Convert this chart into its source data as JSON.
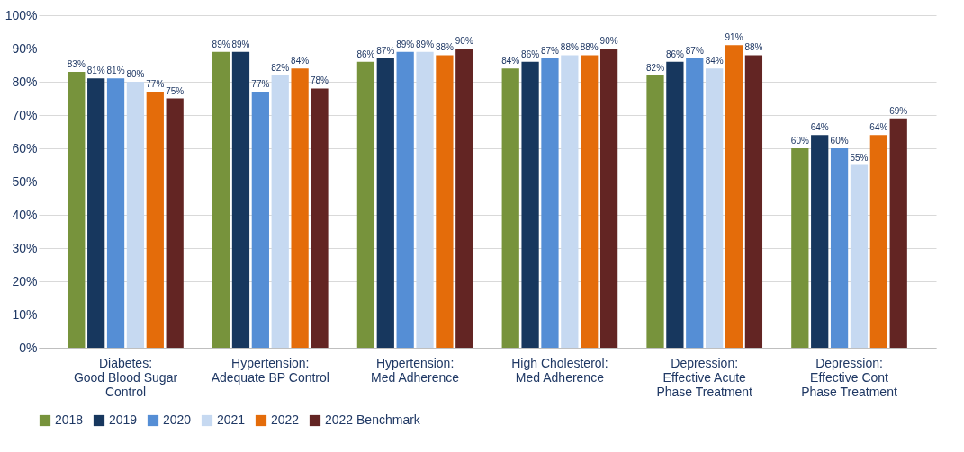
{
  "chart_data": {
    "type": "bar",
    "categories": [
      "Diabetes:\nGood Blood Sugar\nControl",
      "Hypertension:\nAdequate BP Control",
      "Hypertension:\nMed Adherence",
      "High Cholesterol:\nMed Adherence",
      "Depression:\nEffective Acute\nPhase Treatment",
      "Depression:\nEffective Cont\nPhase Treatment"
    ],
    "series": [
      {
        "name": "2018",
        "color": "#77933c",
        "values": [
          83,
          89,
          86,
          84,
          82,
          60
        ],
        "value_labels": [
          "83%",
          "89%",
          "86%",
          "84%",
          "82%",
          "60%"
        ]
      },
      {
        "name": "2019",
        "color": "#17375e",
        "values": [
          81,
          89,
          87,
          86,
          86,
          64
        ],
        "value_labels": [
          "81%",
          "89%",
          "87%",
          "86%",
          "86%",
          "64%"
        ]
      },
      {
        "name": "2020",
        "color": "#558ed5",
        "values": [
          81,
          77,
          89,
          87,
          87,
          60
        ],
        "value_labels": [
          "81%",
          "77%",
          "89%",
          "87%",
          "87%",
          "60%"
        ]
      },
      {
        "name": "2021",
        "color": "#c6d9f1",
        "values": [
          80,
          82,
          89,
          88,
          84,
          55
        ],
        "value_labels": [
          "80%",
          "82%",
          "89%",
          "88%",
          "84%",
          "55%"
        ]
      },
      {
        "name": "2022",
        "color": "#e46c0a",
        "values": [
          77,
          84,
          88,
          88,
          91,
          64
        ],
        "value_labels": [
          "77%",
          "84%",
          "88%",
          "88%",
          "91%",
          "64%"
        ]
      },
      {
        "name": "2022 Benchmark",
        "color": "#632523",
        "values": [
          75,
          78,
          90,
          90,
          88,
          69
        ],
        "value_labels": [
          "75%",
          "78%",
          "90%",
          "90%",
          "88%",
          "69%"
        ]
      }
    ],
    "ylim": [
      0,
      100
    ],
    "yticks": [
      {
        "value": 0,
        "label": "0%"
      },
      {
        "value": 10,
        "label": "10%"
      },
      {
        "value": 20,
        "label": "20%"
      },
      {
        "value": 30,
        "label": "30%"
      },
      {
        "value": 40,
        "label": "40%"
      },
      {
        "value": 50,
        "label": "50%"
      },
      {
        "value": 60,
        "label": "60%"
      },
      {
        "value": 70,
        "label": "70%"
      },
      {
        "value": 80,
        "label": "80%"
      },
      {
        "value": 90,
        "label": "90%"
      },
      {
        "value": 100,
        "label": "100%"
      }
    ],
    "grid": "y",
    "legend": "bottom"
  }
}
